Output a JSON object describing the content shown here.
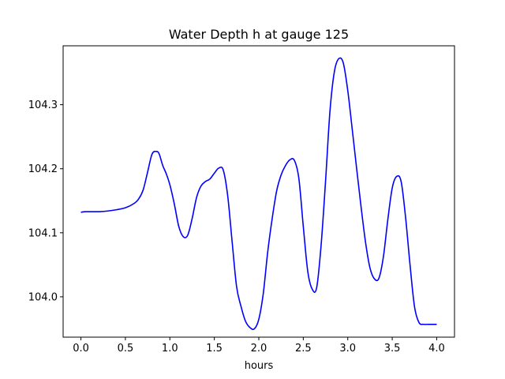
{
  "chart_data": {
    "type": "line",
    "title": "Water Depth h at gauge 125",
    "xlabel": "hours",
    "ylabel": "",
    "xlim": [
      -0.2,
      4.2
    ],
    "ylim": [
      103.937,
      104.392
    ],
    "x_ticks": [
      0.0,
      0.5,
      1.0,
      1.5,
      2.0,
      2.5,
      3.0,
      3.5,
      4.0
    ],
    "x_tick_labels": [
      "0.0",
      "0.5",
      "1.0",
      "1.5",
      "2.0",
      "2.5",
      "3.0",
      "3.5",
      "4.0"
    ],
    "y_ticks": [
      104.0,
      104.1,
      104.2,
      104.3
    ],
    "y_tick_labels": [
      "104.0",
      "104.1",
      "104.2",
      "104.3"
    ],
    "grid": false,
    "series": [
      {
        "color": "#0000ff",
        "x": [
          0.0,
          0.05,
          0.2,
          0.3,
          0.4,
          0.5,
          0.6,
          0.65,
          0.7,
          0.75,
          0.8,
          0.85,
          0.88,
          0.92,
          0.96,
          1.0,
          1.05,
          1.1,
          1.15,
          1.2,
          1.25,
          1.3,
          1.35,
          1.4,
          1.45,
          1.5,
          1.55,
          1.6,
          1.65,
          1.7,
          1.75,
          1.8,
          1.85,
          1.9,
          1.95,
          2.0,
          2.05,
          2.1,
          2.15,
          2.2,
          2.25,
          2.3,
          2.35,
          2.4,
          2.45,
          2.5,
          2.55,
          2.6,
          2.65,
          2.7,
          2.75,
          2.8,
          2.85,
          2.9,
          2.95,
          3.0,
          3.05,
          3.1,
          3.15,
          3.2,
          3.25,
          3.3,
          3.35,
          3.4,
          3.45,
          3.5,
          3.55,
          3.6,
          3.65,
          3.7,
          3.75,
          3.8,
          3.85,
          3.9,
          3.95,
          4.0
        ],
        "values": [
          104.132,
          104.133,
          104.133,
          104.134,
          104.136,
          104.139,
          104.146,
          104.153,
          104.167,
          104.195,
          104.223,
          104.227,
          104.223,
          104.205,
          104.192,
          104.175,
          104.145,
          104.11,
          104.094,
          104.096,
          104.122,
          104.155,
          104.173,
          104.18,
          104.184,
          104.193,
          104.201,
          104.198,
          104.158,
          104.086,
          104.016,
          103.985,
          103.962,
          103.952,
          103.95,
          103.965,
          104.005,
          104.07,
          104.122,
          104.165,
          104.19,
          104.205,
          104.214,
          104.213,
          104.185,
          104.11,
          104.04,
          104.012,
          104.014,
          104.08,
          104.18,
          104.29,
          104.352,
          104.372,
          104.365,
          104.322,
          104.262,
          104.2,
          104.14,
          104.085,
          104.045,
          104.028,
          104.029,
          104.062,
          104.12,
          104.17,
          104.188,
          104.18,
          104.124,
          104.05,
          103.985,
          103.96,
          103.957,
          103.957,
          103.957,
          103.957
        ]
      }
    ]
  }
}
